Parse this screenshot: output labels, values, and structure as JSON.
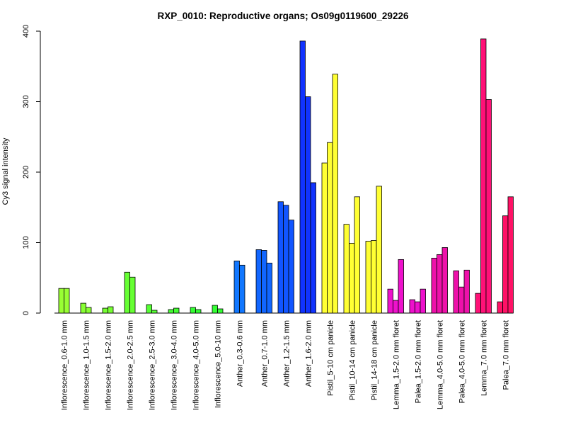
{
  "chart_data": {
    "type": "bar",
    "title": "RXP_0010: Reproductive organs; Os09g0119600_29226",
    "ylabel": "Cy3 signal intensity",
    "xlabel": "",
    "ylim": [
      0,
      400
    ],
    "yticks": [
      "0",
      "100",
      "200",
      "300",
      "400"
    ],
    "grid": false,
    "categories": [
      {
        "label": "Inflorescence_0.6-1.0 mm",
        "color": "#99ff33",
        "values": [
          35,
          35
        ]
      },
      {
        "label": "Inflorescence_1.0-1.5 mm",
        "color": "#88ff33",
        "values": [
          14,
          8
        ]
      },
      {
        "label": "Inflorescence_1.5-2.0 mm",
        "color": "#77ff33",
        "values": [
          7,
          9
        ]
      },
      {
        "label": "Inflorescence_2.0-2.5 mm",
        "color": "#66ff33",
        "values": [
          58,
          51
        ]
      },
      {
        "label": "Inflorescence_2.5-3.0 mm",
        "color": "#55ff33",
        "values": [
          12,
          4
        ]
      },
      {
        "label": "Inflorescence_3.0-4.0 mm",
        "color": "#44ff33",
        "values": [
          5,
          7
        ]
      },
      {
        "label": "Inflorescence_4.0-5.0 mm",
        "color": "#33ff33",
        "values": [
          8,
          5
        ]
      },
      {
        "label": "Inflorescence_5.0-10 mm",
        "color": "#33ff33",
        "values": [
          11,
          6
        ]
      },
      {
        "label": "Anther_0.3-0.6 mm",
        "color": "#1177ff",
        "values": [
          74,
          68
        ]
      },
      {
        "label": "Anther_0.7-1.0 mm",
        "color": "#1166ff",
        "values": [
          90,
          89,
          71
        ]
      },
      {
        "label": "Anther_1.2-1.5 mm",
        "color": "#1155ff",
        "values": [
          158,
          153,
          132
        ]
      },
      {
        "label": "Anther_1.6-2.0 mm",
        "color": "#1133ff",
        "values": [
          386,
          307,
          185
        ]
      },
      {
        "label": "Pistil_5-10 cm panicle",
        "color": "#ffff33",
        "values": [
          213,
          242,
          339
        ]
      },
      {
        "label": "Pistil_10-14 cm panicle",
        "color": "#ffff33",
        "values": [
          126,
          99,
          165
        ]
      },
      {
        "label": "Pistil_14-18 cm panicle",
        "color": "#ffff33",
        "values": [
          102,
          103,
          180
        ]
      },
      {
        "label": "Lemma_1.5-2.0 mm floret",
        "color": "#ee11cc",
        "values": [
          34,
          18,
          76
        ]
      },
      {
        "label": "Palea_1.5-2.0 mm floret",
        "color": "#ee11cc",
        "values": [
          19,
          16,
          34
        ]
      },
      {
        "label": "Lemma_4.0-5.0 mm floret",
        "color": "#ee11aa",
        "values": [
          78,
          83,
          93
        ]
      },
      {
        "label": "Palea_4.0-5.0 mm floret",
        "color": "#ee11aa",
        "values": [
          60,
          37,
          61
        ]
      },
      {
        "label": "Lemma_7.0 mm floret",
        "color": "#ff1177",
        "values": [
          28,
          389,
          303
        ]
      },
      {
        "label": "Palea_7.0 mm floret",
        "color": "#ff1166",
        "values": [
          16,
          138,
          165
        ]
      }
    ]
  }
}
